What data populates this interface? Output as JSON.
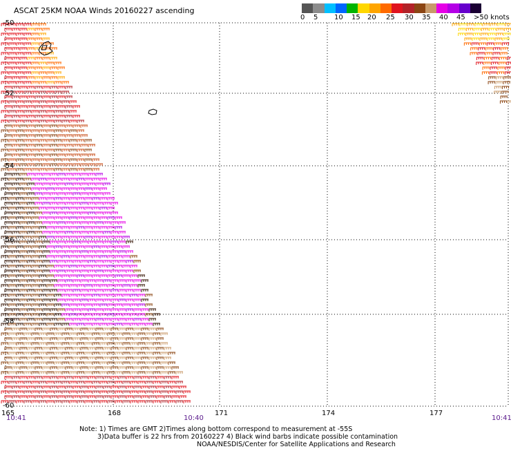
{
  "title": "ASCAT 25KM NOAA Winds 20160227 ascending",
  "colorbar": {
    "colors": [
      "#555555",
      "#8c8c8c",
      "#00bfff",
      "#0066ff",
      "#00b400",
      "#ffd700",
      "#ffa500",
      "#ff6a00",
      "#e0141e",
      "#b22228",
      "#8b4513",
      "#c89a6a",
      "#e600e6",
      "#b400e6",
      "#6600cc",
      "#1a0033"
    ],
    "labels": [
      "0",
      "5",
      "10",
      "15",
      "20",
      "25",
      "30",
      "35",
      "40",
      "45",
      ">50 knots"
    ]
  },
  "map": {
    "latitudes": [
      "-50",
      "-52",
      "-54",
      "-56",
      "-58",
      "-60"
    ],
    "longitudes": [
      "165",
      "168",
      "171",
      "174",
      "177"
    ],
    "times": [
      "10:41",
      "10:40",
      "10:41"
    ],
    "grid": true
  },
  "note": {
    "line1": "Note: 1) Times are GMT 2)Times along bottom correspond to measurement at -55S",
    "line2": "3)Data buffer is 22 hrs from 20160227 4) Black wind barbs indicate possible contamination",
    "line3": "NOAA/NESDIS/Center for Satellite Applications and Research"
  }
}
